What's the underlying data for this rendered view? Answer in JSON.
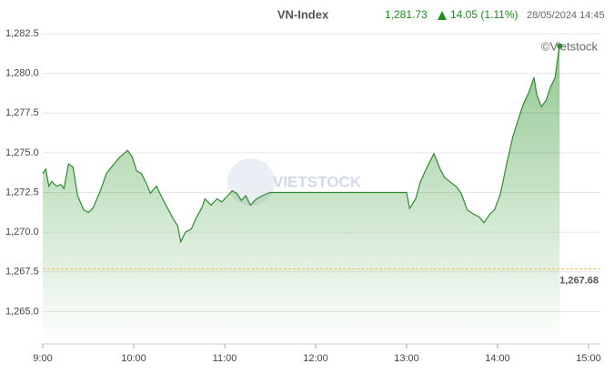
{
  "chart_data": {
    "type": "area",
    "title": "VN-Index",
    "last": {
      "value": 1281.73,
      "label": "1,281.73"
    },
    "change": "14.05 (1.11%)",
    "timestamp": "28/05/2024 14:45",
    "watermark": "©Vietstock",
    "logo": "VIETSTOCK",
    "color": "#2e8b2e",
    "reference": {
      "value": 1267.68,
      "label": "1,267.68",
      "color": "#f0b840"
    },
    "x": [
      "9:00",
      "9:02",
      "9:04",
      "9:06",
      "9:09",
      "9:12",
      "9:14",
      "9:17",
      "9:20",
      "9:23",
      "9:27",
      "9:30",
      "9:33",
      "9:38",
      "9:42",
      "9:47",
      "9:51",
      "9:56",
      "9:59",
      "10:02",
      "10:05",
      "10:08",
      "10:11",
      "10:15",
      "10:19",
      "10:23",
      "10:26",
      "10:29",
      "10:31",
      "10:34",
      "10:38",
      "10:41",
      "10:45",
      "10:47",
      "10:51",
      "10:55",
      "10:58",
      "11:02",
      "11:05",
      "11:08",
      "11:11",
      "11:14",
      "11:17",
      "11:21",
      "11:25",
      "11:30",
      "13:00",
      "13:02",
      "13:06",
      "13:09",
      "13:13",
      "13:18",
      "13:22",
      "13:25",
      "13:29",
      "13:33",
      "13:36",
      "13:40",
      "13:44",
      "13:48",
      "13:51",
      "13:55",
      "13:58",
      "14:02",
      "14:06",
      "14:10",
      "14:14",
      "14:17",
      "14:21",
      "14:24",
      "14:26",
      "14:29",
      "14:32",
      "14:35",
      "14:38",
      "14:40",
      "14:41"
    ],
    "values": [
      1273.7,
      1273.97,
      1272.9,
      1273.2,
      1272.9,
      1273.0,
      1272.75,
      1274.3,
      1274.1,
      1272.3,
      1271.4,
      1271.25,
      1271.5,
      1272.6,
      1273.7,
      1274.3,
      1274.75,
      1275.15,
      1274.75,
      1273.85,
      1273.7,
      1273.15,
      1272.45,
      1272.9,
      1272.1,
      1271.4,
      1270.85,
      1270.4,
      1269.4,
      1270.0,
      1270.2,
      1270.85,
      1271.55,
      1272.1,
      1271.7,
      1272.1,
      1271.9,
      1272.3,
      1272.6,
      1272.45,
      1272.0,
      1272.3,
      1271.7,
      1272.1,
      1272.3,
      1272.5,
      1272.5,
      1271.5,
      1272.1,
      1273.15,
      1274.0,
      1274.95,
      1274.0,
      1273.45,
      1273.15,
      1272.85,
      1272.45,
      1271.4,
      1271.15,
      1270.95,
      1270.6,
      1271.15,
      1271.4,
      1272.45,
      1274.3,
      1276.0,
      1277.2,
      1278.05,
      1278.9,
      1279.75,
      1278.6,
      1277.9,
      1278.3,
      1279.15,
      1279.75,
      1281.2,
      1281.73
    ],
    "xlim": [
      "9:00",
      "15:00"
    ],
    "xticks": [
      "9:00",
      "10:00",
      "11:00",
      "12:00",
      "13:00",
      "14:00",
      "15:00"
    ],
    "ylim": [
      1262.96,
      1283.02
    ],
    "yticks": [
      {
        "value": 1265,
        "label": "1,265.0"
      },
      {
        "value": 1267.5,
        "label": "1,267.5"
      },
      {
        "value": 1270,
        "label": "1,270.0"
      },
      {
        "value": 1272.5,
        "label": "1,272.5"
      },
      {
        "value": 1275,
        "label": "1,275.0"
      },
      {
        "value": 1277.5,
        "label": "1,277.5"
      },
      {
        "value": 1280,
        "label": "1,280.0"
      },
      {
        "value": 1282.5,
        "label": "1,282.5"
      }
    ],
    "grid": true
  }
}
